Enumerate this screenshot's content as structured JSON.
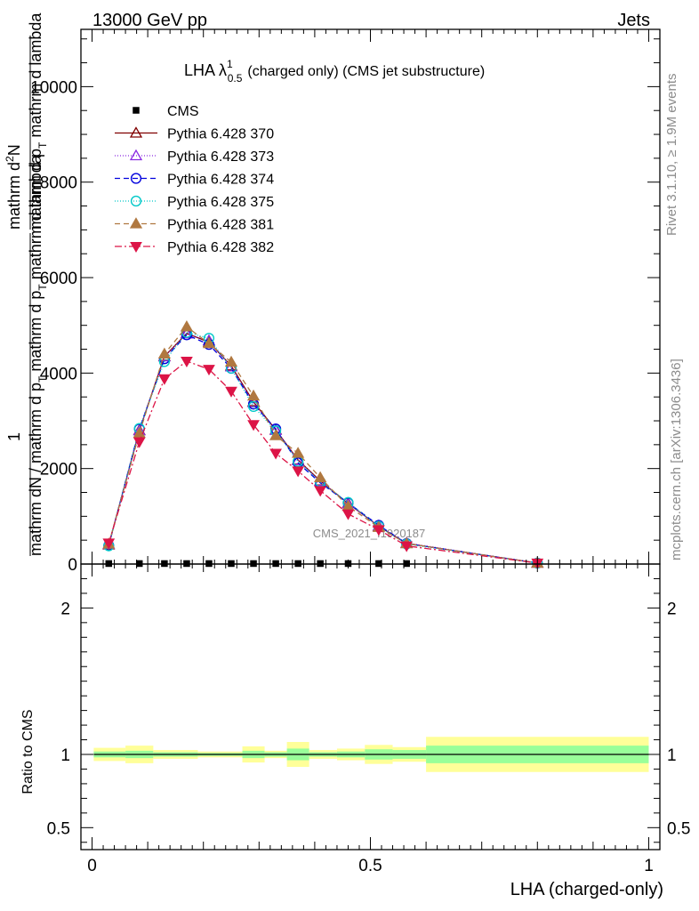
{
  "header": {
    "left": "13000 GeV pp",
    "right": "Jets"
  },
  "side": {
    "rivet": "Rivet 3.1.10, ≥ 1.9M events",
    "mcplots": "mcplots.cern.ch [arXiv:1306.3436]"
  },
  "watermark": "CMS_2021_I1920187",
  "colors": {
    "ratio_inner": "#99ff99",
    "ratio_outer": "#ffff99",
    "data": "#000000"
  },
  "chart_data": {
    "type": "line",
    "title": "LHA λ¹₀.₅ (charged only) (CMS jet substructure)",
    "title_main": "LHA λ",
    "title_sup": "1",
    "title_sub": "0.5",
    "title_rest": "(charged only) (CMS jet substructure)",
    "ylabel_parts": [
      "1",
      "mathrm dN / mathrm d p",
      "T",
      " mathrm d p",
      "T",
      " mathrm d lambda",
      "mathrm d",
      "2",
      "N",
      "mathrm dN"
    ],
    "ylabel_top": "mathrm d²N",
    "ylabel_top_full": "mathrm d p_T mathrm d lambda",
    "ylabel_bottom": "mathrm dN / mathrm d p_T mathrm d p_T mathrm d lambda",
    "xlabel": "LHA (charged-only)",
    "ratio_ylabel": "Ratio to CMS",
    "xlim": [
      -0.02,
      1.02
    ],
    "ylim": [
      0,
      11200
    ],
    "ratio_ylim": [
      0.35,
      2.3
    ],
    "yticks": [
      0,
      2000,
      4000,
      6000,
      8000,
      10000
    ],
    "ytick_labels": [
      "0",
      "2000",
      "4000",
      "6000",
      "8000",
      "10000"
    ],
    "xticks": [
      0,
      0.5,
      1
    ],
    "xtick_labels": [
      "0",
      "0.5",
      "1"
    ],
    "ratio_yticks": [
      0.5,
      1,
      2
    ],
    "ratio_ytick_labels": [
      "0.5",
      "1",
      "2"
    ],
    "legend_placement": "top-left",
    "x": [
      0.03,
      0.085,
      0.13,
      0.17,
      0.21,
      0.25,
      0.29,
      0.33,
      0.37,
      0.41,
      0.46,
      0.515,
      0.565,
      0.8
    ],
    "series": [
      {
        "name": "CMS",
        "color": "#000000",
        "marker": "square",
        "dash": "",
        "values": [
          10,
          10,
          10,
          10,
          10,
          10,
          10,
          10,
          10,
          10,
          10,
          10,
          10,
          null
        ]
      },
      {
        "name": "Pythia 6.428 370",
        "color": "#800000",
        "marker": "triangle-open",
        "dash": "",
        "values": [
          400,
          2800,
          4350,
          4830,
          4650,
          4150,
          3400,
          2810,
          2180,
          1740,
          1270,
          790,
          430,
          20
        ]
      },
      {
        "name": "Pythia 6.428 373",
        "color": "#8a2be2",
        "marker": "triangle-open",
        "dash": "1,2",
        "values": [
          410,
          2790,
          4340,
          4820,
          4680,
          4130,
          3380,
          2800,
          2170,
          1730,
          1260,
          800,
          440,
          20
        ]
      },
      {
        "name": "Pythia 6.428 374",
        "color": "#0000dd",
        "marker": "circle-open",
        "dash": "6,4",
        "values": [
          390,
          2830,
          4300,
          4800,
          4600,
          4100,
          3350,
          2830,
          2120,
          1700,
          1280,
          810,
          430,
          20
        ]
      },
      {
        "name": "Pythia 6.428 375",
        "color": "#00c8c8",
        "marker": "circle-open",
        "dash": "1,2",
        "values": [
          380,
          2840,
          4240,
          4850,
          4730,
          4100,
          3300,
          2790,
          2150,
          1720,
          1290,
          790,
          420,
          20
        ]
      },
      {
        "name": "Pythia 6.428 381",
        "color": "#b07840",
        "marker": "triangle-filled",
        "dash": "6,4",
        "values": [
          420,
          2740,
          4400,
          4970,
          4620,
          4230,
          3520,
          2690,
          2320,
          1810,
          1210,
          770,
          430,
          20
        ]
      },
      {
        "name": "Pythia 6.428 382",
        "color": "#dc1446",
        "marker": "triangledown-filled",
        "dash": "8,3,2,3",
        "values": [
          440,
          2560,
          3880,
          4250,
          4080,
          3620,
          2920,
          2320,
          1950,
          1540,
          1050,
          720,
          380,
          20
        ]
      }
    ],
    "ratio_bands": [
      {
        "x0": 0.003,
        "x1": 0.06,
        "inner": [
          0.98,
          1.02
        ],
        "outer": [
          0.955,
          1.045
        ]
      },
      {
        "x0": 0.06,
        "x1": 0.11,
        "inner": [
          0.975,
          1.025
        ],
        "outer": [
          0.94,
          1.06
        ]
      },
      {
        "x0": 0.11,
        "x1": 0.19,
        "inner": [
          0.985,
          1.015
        ],
        "outer": [
          0.97,
          1.03
        ]
      },
      {
        "x0": 0.19,
        "x1": 0.27,
        "inner": [
          0.99,
          1.01
        ],
        "outer": [
          0.98,
          1.02
        ]
      },
      {
        "x0": 0.27,
        "x1": 0.31,
        "inner": [
          0.975,
          1.025
        ],
        "outer": [
          0.945,
          1.055
        ]
      },
      {
        "x0": 0.31,
        "x1": 0.35,
        "inner": [
          0.985,
          1.015
        ],
        "outer": [
          0.975,
          1.025
        ]
      },
      {
        "x0": 0.35,
        "x1": 0.39,
        "inner": [
          0.96,
          1.04
        ],
        "outer": [
          0.915,
          1.085
        ]
      },
      {
        "x0": 0.39,
        "x1": 0.44,
        "inner": [
          0.985,
          1.015
        ],
        "outer": [
          0.97,
          1.03
        ]
      },
      {
        "x0": 0.44,
        "x1": 0.49,
        "inner": [
          0.98,
          1.02
        ],
        "outer": [
          0.96,
          1.04
        ]
      },
      {
        "x0": 0.49,
        "x1": 0.54,
        "inner": [
          0.965,
          1.035
        ],
        "outer": [
          0.935,
          1.065
        ]
      },
      {
        "x0": 0.54,
        "x1": 0.6,
        "inner": [
          0.97,
          1.03
        ],
        "outer": [
          0.95,
          1.05
        ]
      },
      {
        "x0": 0.6,
        "x1": 1.0,
        "inner": [
          0.94,
          1.06
        ],
        "outer": [
          0.88,
          1.12
        ]
      }
    ]
  }
}
